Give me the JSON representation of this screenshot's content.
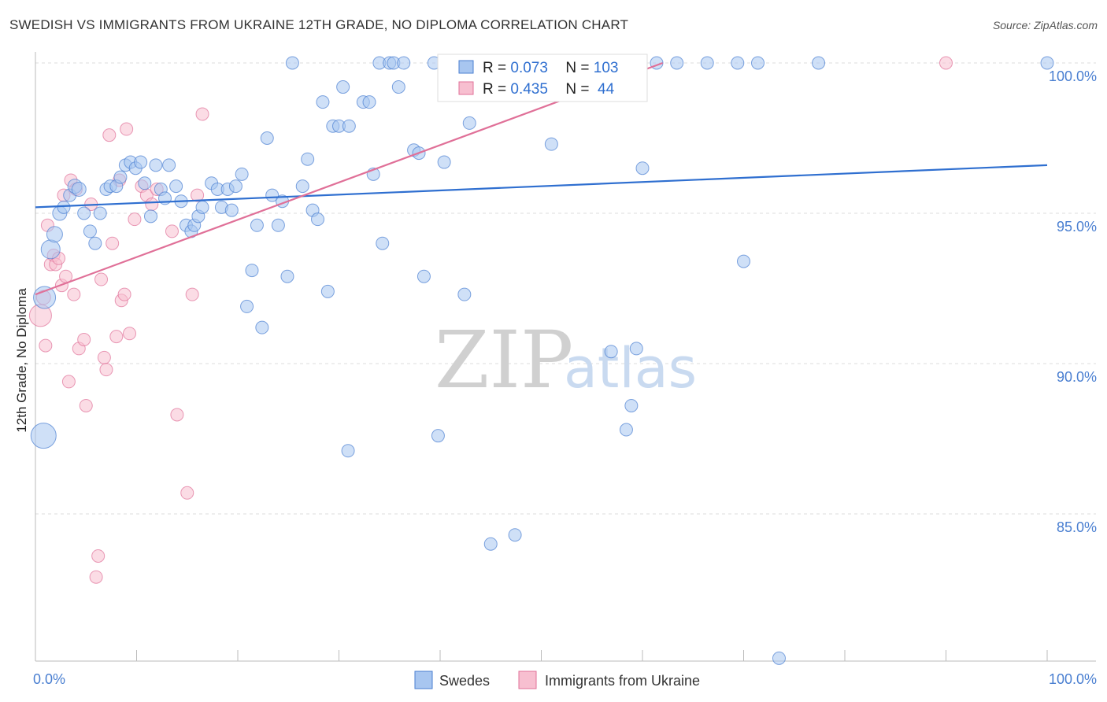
{
  "title": "SWEDISH VS IMMIGRANTS FROM UKRAINE 12TH GRADE, NO DIPLOMA CORRELATION CHART",
  "source": "Source: ZipAtlas.com",
  "watermark": {
    "zip": "ZIP",
    "atlas": "atlas"
  },
  "colors": {
    "blue": "#2f6fd0",
    "blue_fill": "#a8c6f0",
    "pink": "#e07098",
    "pink_fill": "#f7bfd0",
    "grid": "#dddddd"
  },
  "chart_data": {
    "type": "scatter",
    "title": "SWEDISH VS IMMIGRANTS FROM UKRAINE 12TH GRADE, NO DIPLOMA CORRELATION CHART",
    "xlabel": "",
    "ylabel": "12th Grade, No Diploma",
    "xlim": [
      0,
      100
    ],
    "ylim": [
      80.0,
      100.5
    ],
    "x_tick_labels": [
      "0.0%",
      "100.0%"
    ],
    "y_ticks": [
      {
        "value": 100.0,
        "label": "100.0%"
      },
      {
        "value": 95.0,
        "label": "95.0%"
      },
      {
        "value": 90.0,
        "label": "90.0%"
      },
      {
        "value": 85.0,
        "label": "85.0%"
      }
    ],
    "legend": [
      {
        "name": "Swedes",
        "color": "blue"
      },
      {
        "name": "Immigrants from Ukraine",
        "color": "pink"
      }
    ],
    "stats": [
      {
        "r_label": "R = ",
        "r": "0.073",
        "n_label": "N = ",
        "n": "103",
        "series": "blue"
      },
      {
        "r_label": "R = ",
        "r": "0.435",
        "n_label": "N = ",
        "n": " 44",
        "series": "pink"
      }
    ],
    "series": [
      {
        "name": "Swedes",
        "color": "blue",
        "trend": {
          "x0": 0,
          "y0": 95.2,
          "x1": 100,
          "y1": 96.6
        },
        "points": [
          [
            0.9,
            92.2,
            14
          ],
          [
            0.8,
            87.6,
            16
          ],
          [
            1.5,
            93.8,
            12
          ],
          [
            1.9,
            94.3,
            10
          ],
          [
            2.4,
            95.0,
            9
          ],
          [
            2.8,
            95.2,
            8
          ],
          [
            3.4,
            95.6,
            8
          ],
          [
            3.9,
            95.9,
            9
          ],
          [
            4.3,
            95.8,
            9
          ],
          [
            4.8,
            95.0,
            8
          ],
          [
            5.4,
            94.4,
            8
          ],
          [
            5.9,
            94.0,
            8
          ],
          [
            6.4,
            95.0,
            8
          ],
          [
            7.0,
            95.8,
            8
          ],
          [
            7.4,
            95.9,
            8
          ],
          [
            8.0,
            95.9,
            8
          ],
          [
            8.4,
            96.2,
            8
          ],
          [
            8.9,
            96.6,
            8
          ],
          [
            9.4,
            96.7,
            8
          ],
          [
            9.9,
            96.5,
            8
          ],
          [
            10.4,
            96.7,
            8
          ],
          [
            10.8,
            96.0,
            8
          ],
          [
            11.4,
            94.9,
            8
          ],
          [
            11.9,
            96.6,
            8
          ],
          [
            12.4,
            95.8,
            8
          ],
          [
            12.8,
            95.5,
            8
          ],
          [
            13.2,
            96.6,
            8
          ],
          [
            13.9,
            95.9,
            8
          ],
          [
            14.4,
            95.4,
            8
          ],
          [
            14.9,
            94.6,
            8
          ],
          [
            15.4,
            94.4,
            8
          ],
          [
            15.7,
            94.6,
            8
          ],
          [
            16.1,
            94.9,
            8
          ],
          [
            16.5,
            95.2,
            8
          ],
          [
            17.4,
            96.0,
            8
          ],
          [
            18.0,
            95.8,
            8
          ],
          [
            18.4,
            95.2,
            8
          ],
          [
            19.0,
            95.8,
            8
          ],
          [
            19.4,
            95.1,
            8
          ],
          [
            19.8,
            95.9,
            8
          ],
          [
            20.4,
            96.3,
            8
          ],
          [
            20.9,
            91.9,
            8
          ],
          [
            21.4,
            93.1,
            8
          ],
          [
            21.9,
            94.6,
            8
          ],
          [
            22.4,
            91.2,
            8
          ],
          [
            22.9,
            97.5,
            8
          ],
          [
            23.4,
            95.6,
            8
          ],
          [
            24.0,
            94.6,
            8
          ],
          [
            24.4,
            95.4,
            8
          ],
          [
            24.9,
            92.9,
            8
          ],
          [
            25.4,
            100.0,
            8
          ],
          [
            26.4,
            95.9,
            8
          ],
          [
            26.9,
            96.8,
            8
          ],
          [
            27.4,
            95.1,
            8
          ],
          [
            27.9,
            94.8,
            8
          ],
          [
            28.4,
            98.7,
            8
          ],
          [
            28.9,
            92.4,
            8
          ],
          [
            29.4,
            97.9,
            8
          ],
          [
            30.0,
            97.9,
            8
          ],
          [
            30.4,
            99.2,
            8
          ],
          [
            30.9,
            87.1,
            8
          ],
          [
            31.0,
            97.9,
            8
          ],
          [
            32.4,
            98.7,
            8
          ],
          [
            33.0,
            98.7,
            8
          ],
          [
            33.4,
            96.3,
            8
          ],
          [
            34.0,
            100.0,
            8
          ],
          [
            34.3,
            94.0,
            8
          ],
          [
            35.0,
            100.0,
            8
          ],
          [
            35.4,
            100.0,
            8
          ],
          [
            35.9,
            99.2,
            8
          ],
          [
            36.4,
            100.0,
            8
          ],
          [
            37.4,
            97.1,
            8
          ],
          [
            37.9,
            97.0,
            8
          ],
          [
            38.4,
            92.9,
            8
          ],
          [
            39.4,
            100.0,
            8
          ],
          [
            39.8,
            87.6,
            8
          ],
          [
            40.4,
            96.7,
            8
          ],
          [
            41.4,
            100.0,
            8
          ],
          [
            42.4,
            92.3,
            8
          ],
          [
            42.9,
            98.0,
            8
          ],
          [
            43.4,
            100.0,
            8
          ],
          [
            45.0,
            84.0,
            8
          ],
          [
            47.0,
            100.0,
            8
          ],
          [
            47.4,
            84.3,
            8
          ],
          [
            49.4,
            100.0,
            8
          ],
          [
            50.4,
            100.0,
            8
          ],
          [
            51.0,
            97.3,
            8
          ],
          [
            53.4,
            100.0,
            8
          ],
          [
            54.4,
            100.0,
            8
          ],
          [
            56.4,
            100.0,
            8
          ],
          [
            56.9,
            90.4,
            8
          ],
          [
            58.4,
            87.8,
            8
          ],
          [
            58.9,
            88.6,
            8
          ],
          [
            59.4,
            90.5,
            8
          ],
          [
            60.0,
            96.5,
            8
          ],
          [
            61.4,
            100.0,
            8
          ],
          [
            63.4,
            100.0,
            8
          ],
          [
            66.4,
            100.0,
            8
          ],
          [
            69.4,
            100.0,
            8
          ],
          [
            70.0,
            93.4,
            8
          ],
          [
            71.4,
            100.0,
            8
          ],
          [
            73.5,
            80.2,
            8
          ],
          [
            77.4,
            100.0,
            8
          ],
          [
            100.0,
            100.0,
            8
          ]
        ]
      },
      {
        "name": "Immigrants from Ukraine",
        "color": "pink",
        "trend": {
          "x0": 0,
          "y0": 92.3,
          "x1": 62,
          "y1": 100.0
        },
        "points": [
          [
            0.5,
            91.6,
            14
          ],
          [
            0.8,
            92.2,
            9
          ],
          [
            1.0,
            90.6,
            8
          ],
          [
            1.2,
            94.6,
            8
          ],
          [
            1.5,
            93.3,
            8
          ],
          [
            1.8,
            93.6,
            8
          ],
          [
            2.0,
            93.3,
            8
          ],
          [
            2.3,
            93.5,
            8
          ],
          [
            2.6,
            92.6,
            8
          ],
          [
            2.8,
            95.6,
            8
          ],
          [
            3.0,
            92.9,
            8
          ],
          [
            3.3,
            89.4,
            8
          ],
          [
            3.5,
            96.1,
            8
          ],
          [
            3.8,
            92.3,
            8
          ],
          [
            4.0,
            95.8,
            8
          ],
          [
            4.3,
            90.5,
            8
          ],
          [
            4.8,
            90.8,
            8
          ],
          [
            5.0,
            88.6,
            8
          ],
          [
            5.5,
            95.3,
            8
          ],
          [
            6.0,
            82.9,
            8
          ],
          [
            6.2,
            83.6,
            8
          ],
          [
            6.5,
            92.8,
            8
          ],
          [
            6.8,
            90.2,
            8
          ],
          [
            7.0,
            89.8,
            8
          ],
          [
            7.3,
            97.6,
            8
          ],
          [
            7.6,
            94.0,
            8
          ],
          [
            8.0,
            90.9,
            8
          ],
          [
            8.3,
            96.1,
            8
          ],
          [
            8.5,
            92.1,
            8
          ],
          [
            8.8,
            92.3,
            8
          ],
          [
            9.0,
            97.8,
            8
          ],
          [
            9.3,
            91.0,
            8
          ],
          [
            9.8,
            94.8,
            8
          ],
          [
            10.5,
            95.9,
            8
          ],
          [
            11.0,
            95.6,
            8
          ],
          [
            11.5,
            95.3,
            8
          ],
          [
            12.0,
            95.8,
            8
          ],
          [
            13.5,
            94.4,
            8
          ],
          [
            14.0,
            88.3,
            8
          ],
          [
            15.0,
            85.7,
            8
          ],
          [
            15.5,
            92.3,
            8
          ],
          [
            16.0,
            95.6,
            8
          ],
          [
            16.5,
            98.3,
            8
          ],
          [
            90.0,
            100.0,
            8
          ]
        ]
      }
    ]
  }
}
